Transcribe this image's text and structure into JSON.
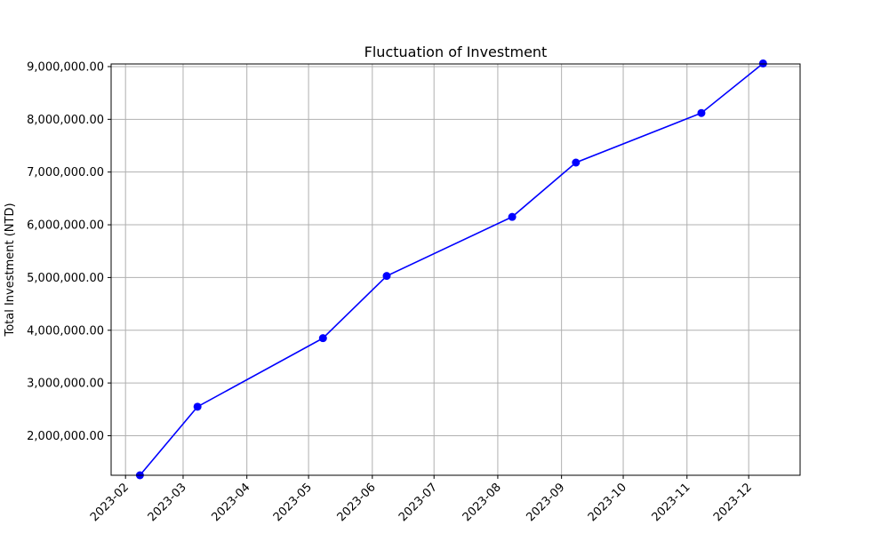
{
  "chart_data": {
    "type": "line",
    "title": "Fluctuation of Investment",
    "xlabel": "",
    "ylabel": "Total Investment (NTD)",
    "x_ticks": [
      "2023-02",
      "2023-03",
      "2023-04",
      "2023-05",
      "2023-06",
      "2023-07",
      "2023-08",
      "2023-09",
      "2023-10",
      "2023-11",
      "2023-12"
    ],
    "y_ticks": [
      "2,000,000.00",
      "3,000,000.00",
      "4,000,000.00",
      "5,000,000.00",
      "6,000,000.00",
      "7,000,000.00",
      "8,000,000.00",
      "9,000,000.00"
    ],
    "y_tick_values": [
      2000000,
      3000000,
      4000000,
      5000000,
      6000000,
      7000000,
      8000000,
      9000000
    ],
    "ylim": [
      1250000,
      9050000
    ],
    "xlim": [
      "2023-01-25",
      "2023-12-26"
    ],
    "grid": true,
    "marker": "circle",
    "line_color": "#0000ff",
    "series": [
      {
        "x": [
          "2023-02-08",
          "2023-03-08",
          "2023-05-08",
          "2023-06-08",
          "2023-08-08",
          "2023-09-08",
          "2023-11-08",
          "2023-12-08"
        ],
        "y": [
          1250000,
          2550000,
          3850000,
          5030000,
          6150000,
          7180000,
          8120000,
          9060000
        ]
      }
    ]
  }
}
